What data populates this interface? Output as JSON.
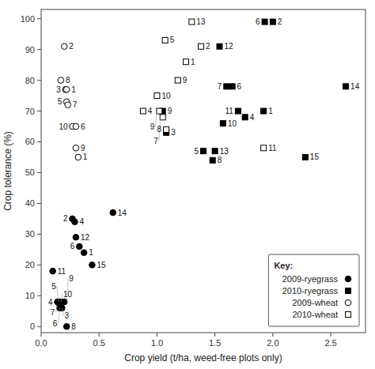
{
  "chart_data": {
    "type": "scatter",
    "xlabel": "Crop yield (t/ha, weed-free plots only)",
    "ylabel": "Crop tolerance (%)",
    "xlim": [
      0,
      2.8
    ],
    "ylim": [
      -2,
      103
    ],
    "xticks": [
      {
        "value": 0.0,
        "label": "0.0"
      },
      0.5,
      {
        "value": 1.0,
        "label": "1.0"
      },
      1.5,
      {
        "value": 2.0,
        "label": "2.0"
      },
      2.5
    ],
    "yticks": [
      0,
      10,
      20,
      30,
      40,
      50,
      60,
      70,
      80,
      90,
      100
    ],
    "grid": false,
    "legend": "lower right",
    "legend_title": "Key:",
    "series": [
      {
        "name": "2009-ryegrass",
        "color": "black",
        "marker": "circle",
        "x": [
          0.1,
          0.14,
          0.15,
          0.16,
          0.16,
          0.17,
          0.18,
          0.2,
          0.22,
          0.27,
          0.29,
          0.3,
          0.33,
          0.37,
          0.44,
          0.62
        ],
        "values": [
          18,
          8,
          8,
          7,
          6,
          8,
          6,
          8,
          0,
          35,
          34,
          29,
          26,
          24,
          20,
          37
        ],
        "labels": [
          "11",
          "4",
          "10",
          "7",
          "3",
          "5",
          "6",
          "9",
          "8",
          "2",
          "4",
          "12",
          "6",
          "1",
          "15",
          "14"
        ]
      },
      {
        "name": "2010-ryegrass",
        "color": "black",
        "marker": "square",
        "x": [
          1.4,
          1.48,
          1.5,
          1.57,
          1.6,
          1.65,
          1.7,
          1.76,
          1.92,
          1.93,
          2.0,
          1.54,
          2.28,
          2.63,
          1.05,
          1.08
        ],
        "values": [
          57,
          54,
          57,
          66,
          78,
          78,
          70,
          68,
          70,
          99,
          99,
          91,
          55,
          78,
          70,
          63
        ],
        "labels": [
          "5",
          "8",
          "13",
          "10",
          "7",
          "6",
          "11",
          "4",
          "1",
          "6",
          "2",
          "12",
          "15",
          "14",
          "9",
          "3"
        ]
      },
      {
        "name": "2009-wheat",
        "color": "black",
        "marker": "open-circle",
        "x": [
          0.17,
          0.2,
          0.21,
          0.22,
          0.22,
          0.23,
          0.27,
          0.3,
          0.3,
          0.32
        ],
        "values": [
          80,
          91,
          77,
          77,
          73,
          72,
          65,
          65,
          58,
          55
        ],
        "labels": [
          "8",
          "2",
          "3",
          "1",
          "5",
          "7",
          "10",
          "6",
          "9",
          "1"
        ]
      },
      {
        "name": "2010-wheat",
        "color": "black",
        "marker": "open-square",
        "x": [
          0.88,
          1.0,
          1.02,
          1.05,
          1.07,
          1.08,
          1.18,
          1.25,
          1.3,
          1.38,
          1.92
        ],
        "values": [
          70,
          75,
          70,
          68,
          93,
          64,
          80,
          86,
          99,
          91,
          58
        ],
        "labels": [
          "4",
          "10",
          "9",
          "7",
          "5",
          "8",
          "9",
          "1",
          "13",
          "2",
          "11"
        ]
      }
    ]
  }
}
